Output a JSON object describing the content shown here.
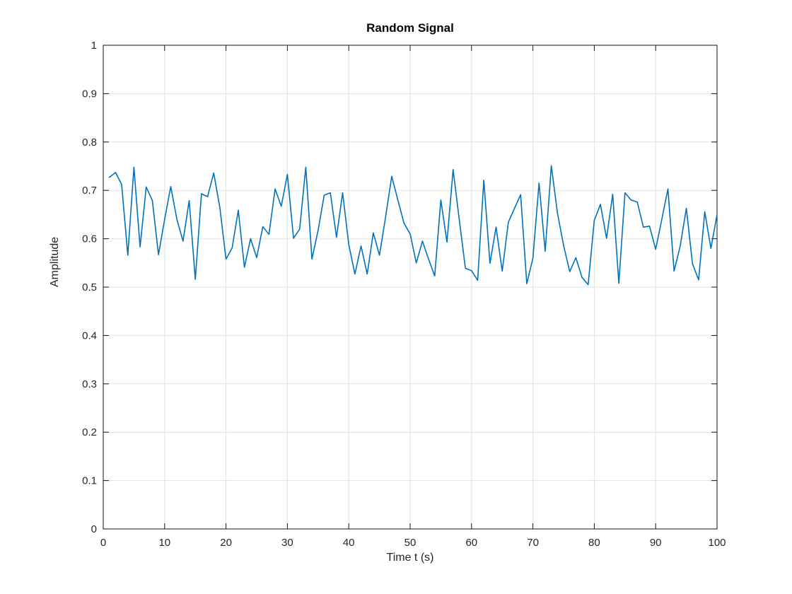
{
  "figure": {
    "background": "#ffffff"
  },
  "chart_data": {
    "type": "line",
    "title": "Random Signal",
    "xlabel": "Time t (s)",
    "ylabel": "Amplitude",
    "xlim": [
      0,
      100
    ],
    "ylim": [
      0,
      1
    ],
    "x_ticks": [
      0,
      10,
      20,
      30,
      40,
      50,
      60,
      70,
      80,
      90,
      100
    ],
    "y_ticks": [
      0,
      0.1,
      0.2,
      0.3,
      0.4,
      0.5,
      0.6,
      0.7,
      0.8,
      0.9,
      1
    ],
    "x_tick_labels": [
      "0",
      "10",
      "20",
      "30",
      "40",
      "50",
      "60",
      "70",
      "80",
      "90",
      "100"
    ],
    "y_tick_labels": [
      "0",
      "0.1",
      "0.2",
      "0.3",
      "0.4",
      "0.5",
      "0.6",
      "0.7",
      "0.8",
      "0.9",
      "1"
    ],
    "grid": true,
    "legend": "none",
    "line_color": "#0072BD",
    "grid_color": "#e2e2e2",
    "axis_color": "#151515",
    "tick_label_color": "#262626",
    "series": [
      {
        "name": "random-signal",
        "x_start": 1,
        "x_step": 1,
        "values": [
          0.727,
          0.737,
          0.712,
          0.566,
          0.748,
          0.583,
          0.707,
          0.679,
          0.567,
          0.64,
          0.708,
          0.64,
          0.595,
          0.679,
          0.516,
          0.693,
          0.687,
          0.736,
          0.664,
          0.558,
          0.581,
          0.659,
          0.541,
          0.6,
          0.561,
          0.625,
          0.609,
          0.703,
          0.667,
          0.733,
          0.601,
          0.62,
          0.748,
          0.558,
          0.617,
          0.69,
          0.695,
          0.603,
          0.695,
          0.588,
          0.527,
          0.585,
          0.527,
          0.612,
          0.566,
          0.645,
          0.729,
          0.68,
          0.632,
          0.61,
          0.55,
          0.595,
          0.558,
          0.523,
          0.68,
          0.593,
          0.743,
          0.64,
          0.539,
          0.534,
          0.514,
          0.721,
          0.549,
          0.624,
          0.533,
          0.634,
          0.663,
          0.691,
          0.507,
          0.56,
          0.715,
          0.574,
          0.751,
          0.653,
          0.586,
          0.532,
          0.561,
          0.52,
          0.505,
          0.638,
          0.671,
          0.601,
          0.692,
          0.508,
          0.695,
          0.68,
          0.676,
          0.624,
          0.626,
          0.578,
          0.64,
          0.703,
          0.533,
          0.585,
          0.663,
          0.548,
          0.515,
          0.656,
          0.58,
          0.65
        ]
      }
    ]
  }
}
